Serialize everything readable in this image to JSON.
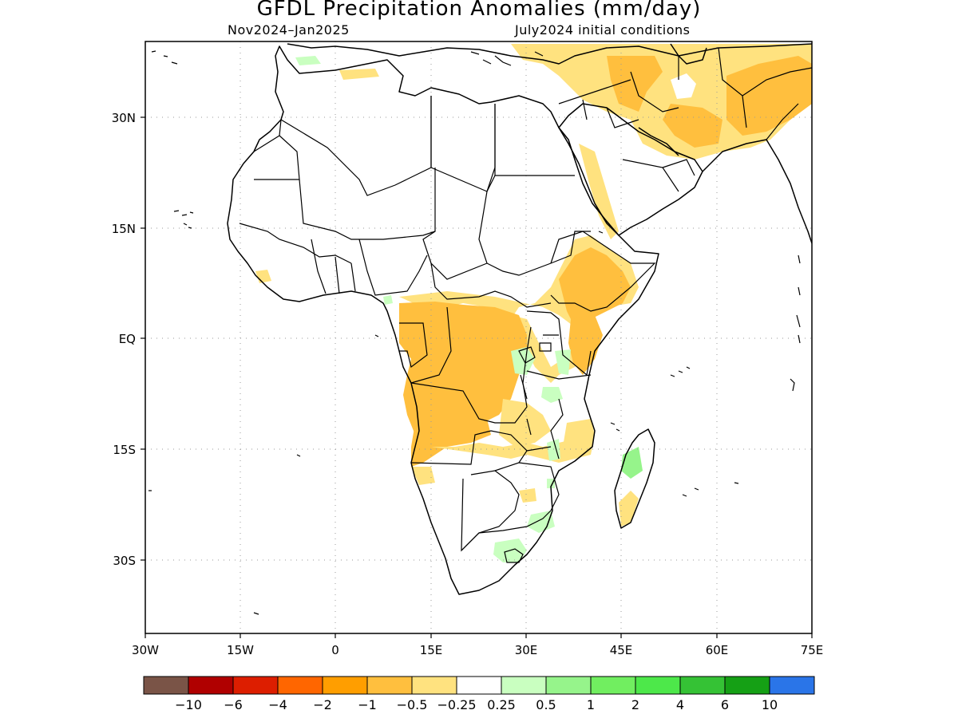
{
  "title": "GFDL Precipitation Anomalies (mm/day)",
  "period": "Nov2024–Jan2025",
  "initial_conditions": "July2024 initial conditions",
  "axes": {
    "x_ticks": [
      "30W",
      "15W",
      "0",
      "15E",
      "30E",
      "45E",
      "60E",
      "75E"
    ],
    "y_ticks": [
      "30N",
      "15N",
      "EQ",
      "15S",
      "30S"
    ],
    "x_range_deg": [
      -30,
      75
    ],
    "y_range_deg": [
      -40,
      40
    ],
    "grid": true
  },
  "colorbar": {
    "labels": [
      "−10",
      "−6",
      "−4",
      "−2",
      "−1",
      "−0.5",
      "−0.25",
      "0.25",
      "0.5",
      "1",
      "2",
      "4",
      "6",
      "10"
    ],
    "colors": [
      "#7a5447",
      "#b00000",
      "#dd1e00",
      "#ff6600",
      "#ff9e00",
      "#ffbf3e",
      "#ffe27f",
      "#ffffff",
      "#c9ffc0",
      "#96f48b",
      "#71ee60",
      "#4de84a",
      "#35c235",
      "#15a015",
      "#2a75e8"
    ]
  },
  "colors": {
    "dry_light": "#ffe27f",
    "dry_medium": "#ffbf3e",
    "wet_light": "#c9ffc0",
    "wet_medium": "#96f48b",
    "coast": "#000000",
    "grid": "#888888"
  }
}
